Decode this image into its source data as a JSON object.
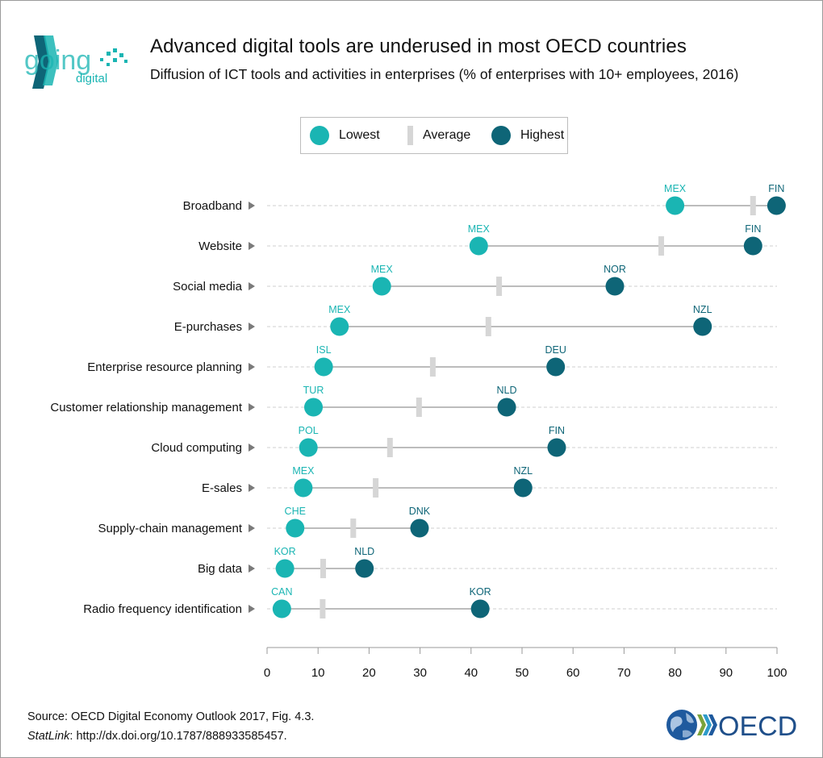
{
  "header": {
    "title": "Advanced digital tools are underused in most OECD countries",
    "subtitle": "Diffusion of ICT tools and activities in enterprises (% of enterprises with 10+ employees, 2016)"
  },
  "logo": {
    "text": "going digital",
    "word1": "going",
    "word2": "digital"
  },
  "legend": {
    "lowest": "Lowest",
    "average": "Average",
    "highest": "Highest"
  },
  "colors": {
    "lowest": "#1ab5b3",
    "highest": "#0e6577",
    "average": "#d6d6d6",
    "connector": "#7a7a7a"
  },
  "chart_data": {
    "type": "dot-range",
    "title": "Advanced digital tools are underused in most OECD countries",
    "xlim": [
      0,
      100
    ],
    "xticks": [
      0,
      10,
      20,
      30,
      40,
      50,
      60,
      70,
      80,
      90,
      100
    ],
    "categories": [
      {
        "label": "Broadband",
        "lowest": 80,
        "lowest_country": "MEX",
        "average": 95.3,
        "highest": 99.9,
        "highest_country": "FIN"
      },
      {
        "label": "Website",
        "lowest": 41.5,
        "lowest_country": "MEX",
        "average": 77.3,
        "highest": 95.3,
        "highest_country": "FIN"
      },
      {
        "label": "Social media",
        "lowest": 22.5,
        "lowest_country": "MEX",
        "average": 45.5,
        "highest": 68.2,
        "highest_country": "NOR"
      },
      {
        "label": "E-purchases",
        "lowest": 14.2,
        "lowest_country": "MEX",
        "average": 43.4,
        "highest": 85.4,
        "highest_country": "NZL"
      },
      {
        "label": "Enterprise resource planning",
        "lowest": 11.1,
        "lowest_country": "ISL",
        "average": 32.5,
        "highest": 56.6,
        "highest_country": "DEU"
      },
      {
        "label": "Customer relationship management",
        "lowest": 9.1,
        "lowest_country": "TUR",
        "average": 29.8,
        "highest": 47.0,
        "highest_country": "NLD"
      },
      {
        "label": "Cloud computing",
        "lowest": 8.1,
        "lowest_country": "POL",
        "average": 24.1,
        "highest": 56.8,
        "highest_country": "FIN"
      },
      {
        "label": "E-sales",
        "lowest": 7.1,
        "lowest_country": "MEX",
        "average": 21.3,
        "highest": 50.2,
        "highest_country": "NZL"
      },
      {
        "label": "Supply-chain management",
        "lowest": 5.5,
        "lowest_country": "CHE",
        "average": 16.9,
        "highest": 29.9,
        "highest_country": "DNK"
      },
      {
        "label": "Big data",
        "lowest": 3.5,
        "lowest_country": "KOR",
        "average": 11.0,
        "highest": 19.1,
        "highest_country": "NLD"
      },
      {
        "label": "Radio frequency identification",
        "lowest": 2.9,
        "lowest_country": "CAN",
        "average": 10.9,
        "highest": 41.8,
        "highest_country": "KOR"
      }
    ]
  },
  "footer": {
    "source": "Source: OECD Digital Economy Outlook 2017, Fig. 4.3.",
    "statlink_label": "StatLink",
    "statlink_url": ": http://dx.doi.org/10.1787/888933585457.",
    "oecd_logo_text": "OECD"
  }
}
